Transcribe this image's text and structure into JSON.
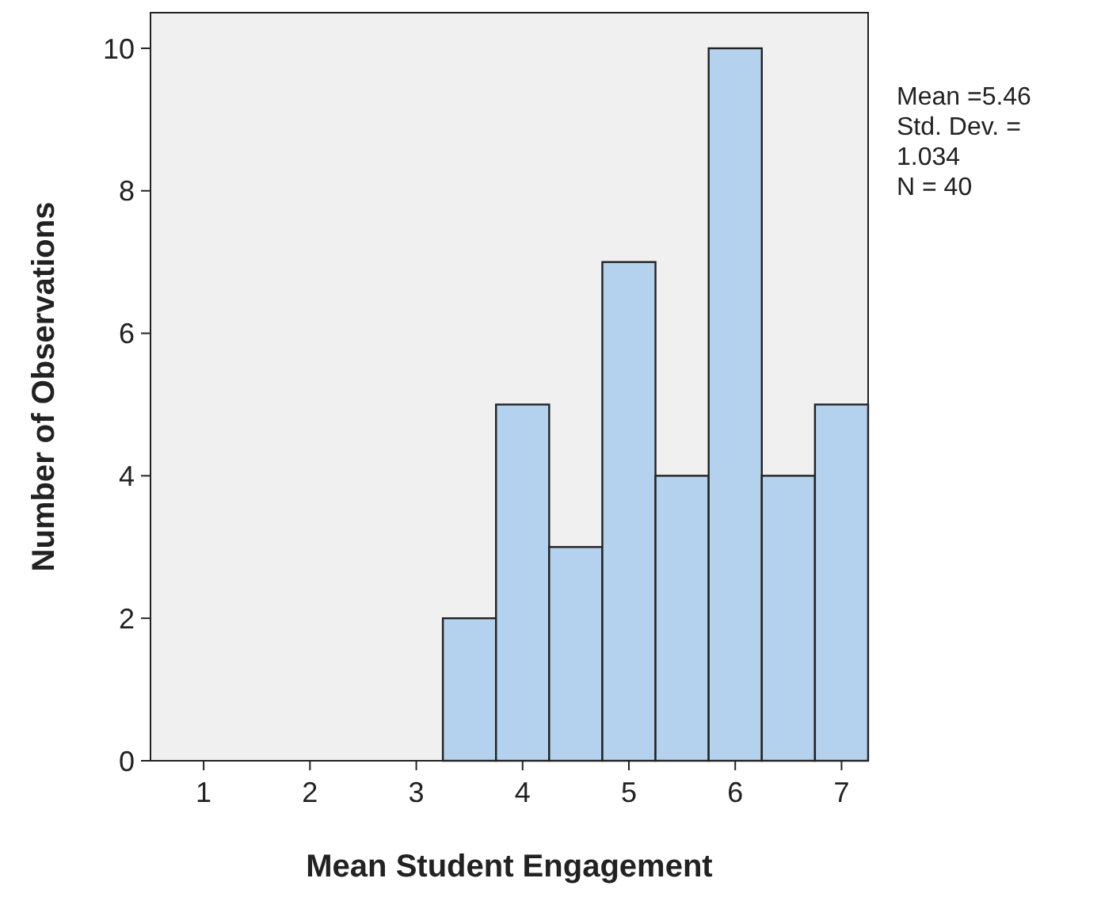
{
  "chart_data": {
    "type": "histogram",
    "xlabel": "Mean Student Engagement",
    "ylabel": "Number of Observations",
    "bins": [
      3.25,
      3.75,
      4.25,
      4.75,
      5.25,
      5.75,
      6.25,
      6.75,
      7.25
    ],
    "values": [
      2,
      5,
      3,
      7,
      4,
      10,
      4,
      5
    ],
    "color": "#b4d2ee",
    "xlim": [
      0.5,
      7.25
    ],
    "xticks": [
      1,
      2,
      3,
      4,
      5,
      6,
      7
    ],
    "ylim": [
      0,
      10.5
    ],
    "yticks": [
      0,
      2,
      4,
      6,
      8,
      10
    ],
    "grid": false,
    "annotations": [
      "Mean =5.46",
      "Std. Dev. =",
      "1.034",
      "N = 40"
    ]
  }
}
